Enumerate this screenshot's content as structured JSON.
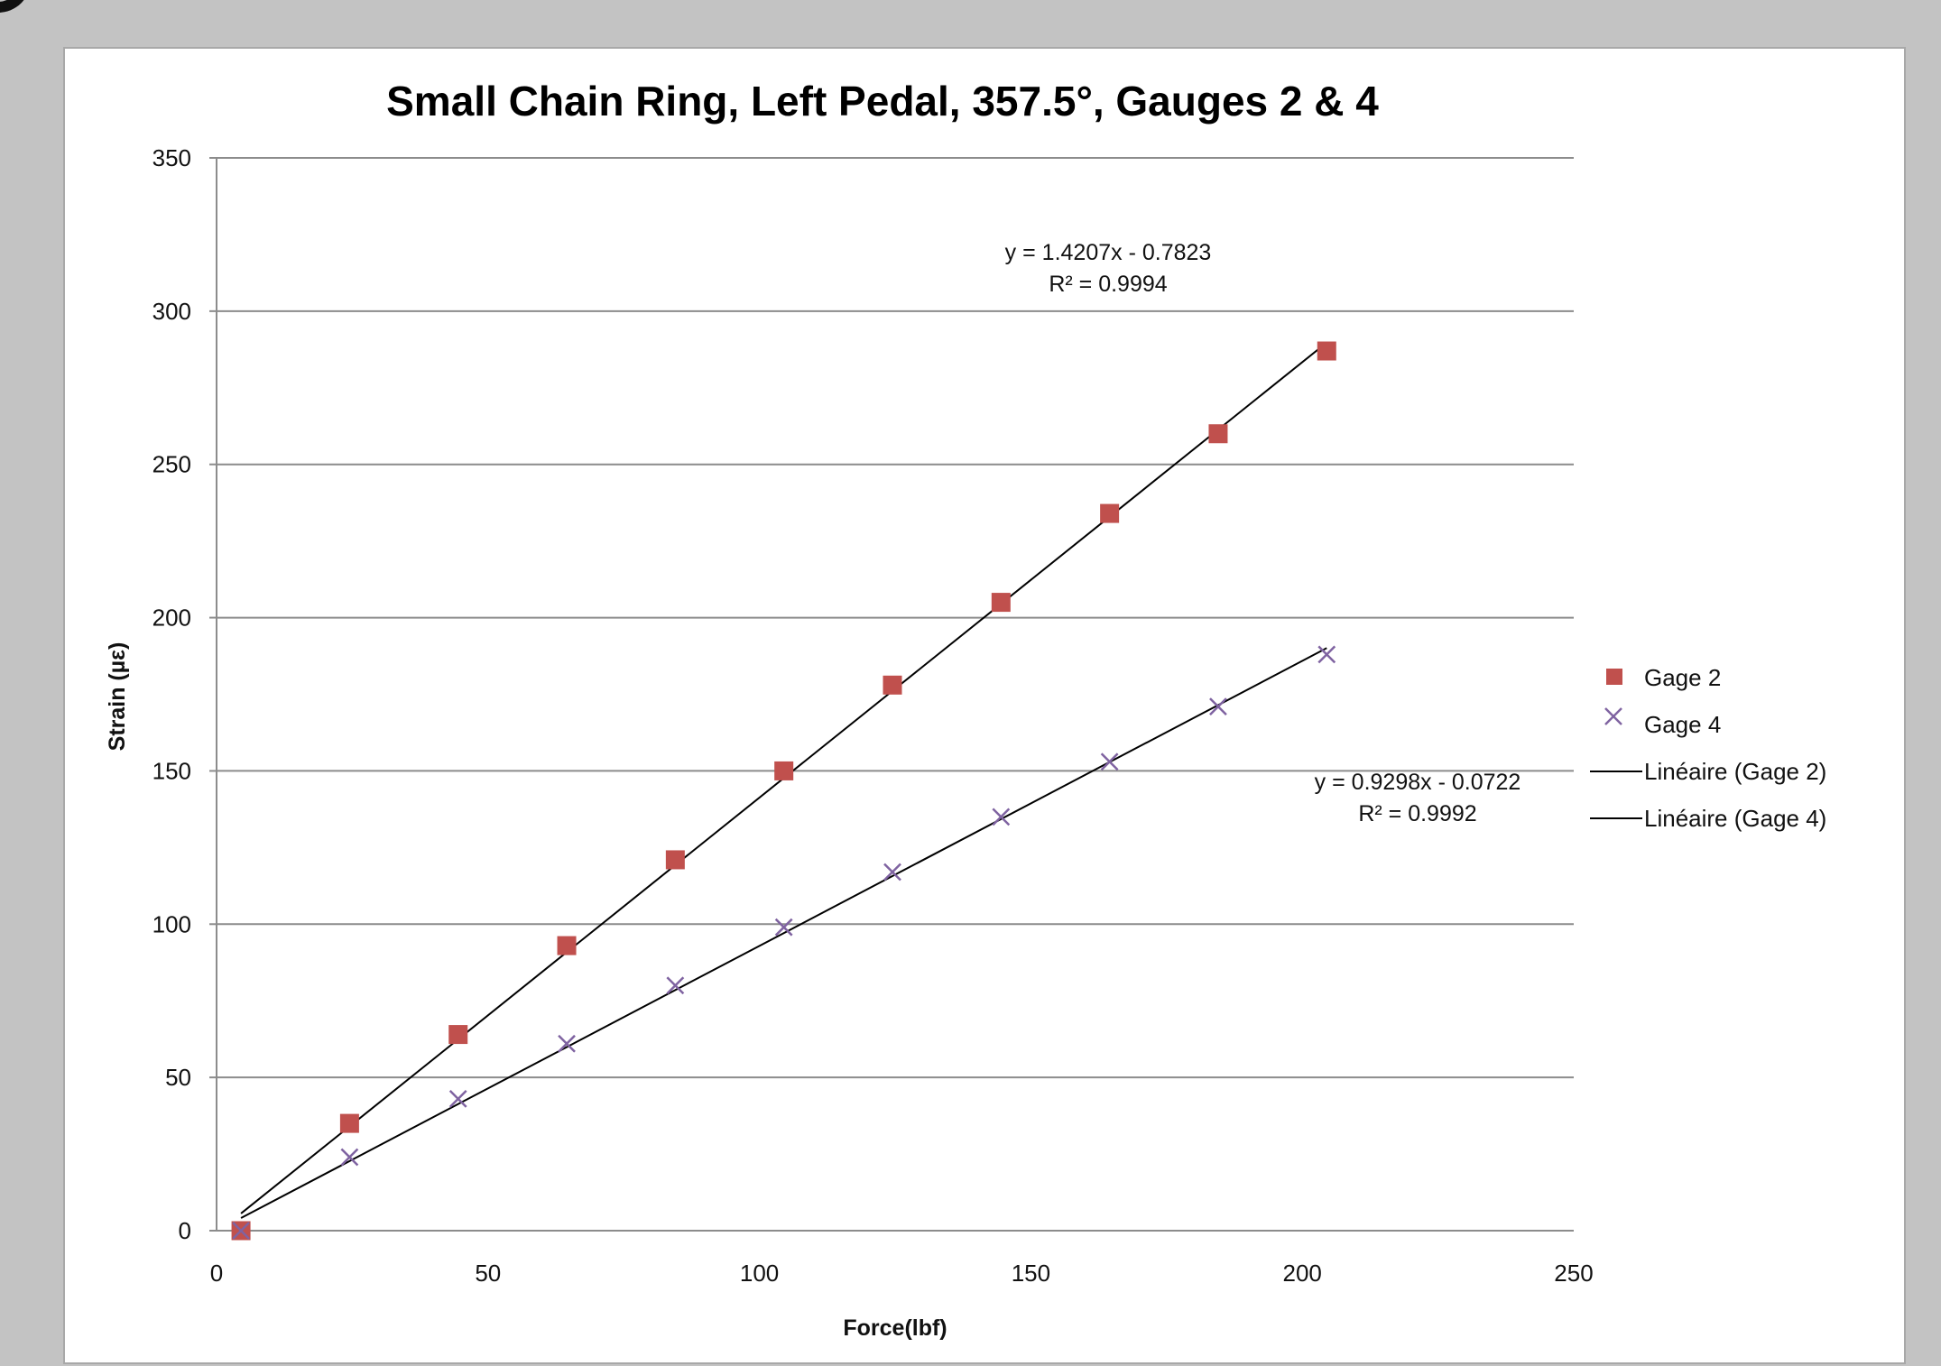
{
  "chart_data": {
    "type": "scatter",
    "title": "Small Chain Ring, Left Pedal, 357.5°,  Gauges 2 & 4",
    "xlabel": "Force(lbf)",
    "ylabel": "Strain (µε)",
    "xlim": [
      0,
      250
    ],
    "ylim": [
      0,
      350
    ],
    "x_ticks": [
      0,
      50,
      100,
      150,
      200,
      250
    ],
    "y_ticks": [
      0,
      50,
      100,
      150,
      200,
      250,
      300,
      350
    ],
    "grid": "horizontal",
    "legend_position": "right",
    "series": [
      {
        "name": "Gage 2",
        "marker": "square",
        "color": "#c0504d",
        "x": [
          4.5,
          24.5,
          44.5,
          64.5,
          84.5,
          104.5,
          124.5,
          144.5,
          164.5,
          184.5,
          204.5
        ],
        "y": [
          0,
          35,
          64,
          93,
          121,
          150,
          178,
          205,
          234,
          260,
          287
        ]
      },
      {
        "name": "Gage 4",
        "marker": "x",
        "color": "#7f63a1",
        "x": [
          4.5,
          24.5,
          44.5,
          64.5,
          84.5,
          104.5,
          124.5,
          144.5,
          164.5,
          184.5,
          204.5
        ],
        "y": [
          0,
          24,
          43,
          61,
          80,
          99,
          117,
          135,
          153,
          171,
          188
        ]
      }
    ],
    "trendlines": [
      {
        "name": "Linéaire (Gage 2)",
        "slope": 1.4207,
        "intercept": -0.7823,
        "x_range": [
          4.5,
          204.5
        ],
        "color": "#000000",
        "equation": "y = 1.4207x - 0.7823",
        "r2": "R² = 0.9994"
      },
      {
        "name": "Linéaire (Gage 4)",
        "slope": 0.9298,
        "intercept": -0.0722,
        "x_range": [
          4.5,
          204.5
        ],
        "color": "#000000",
        "equation": "y = 0.9298x - 0.0722",
        "r2": "R² = 0.9992"
      }
    ]
  }
}
